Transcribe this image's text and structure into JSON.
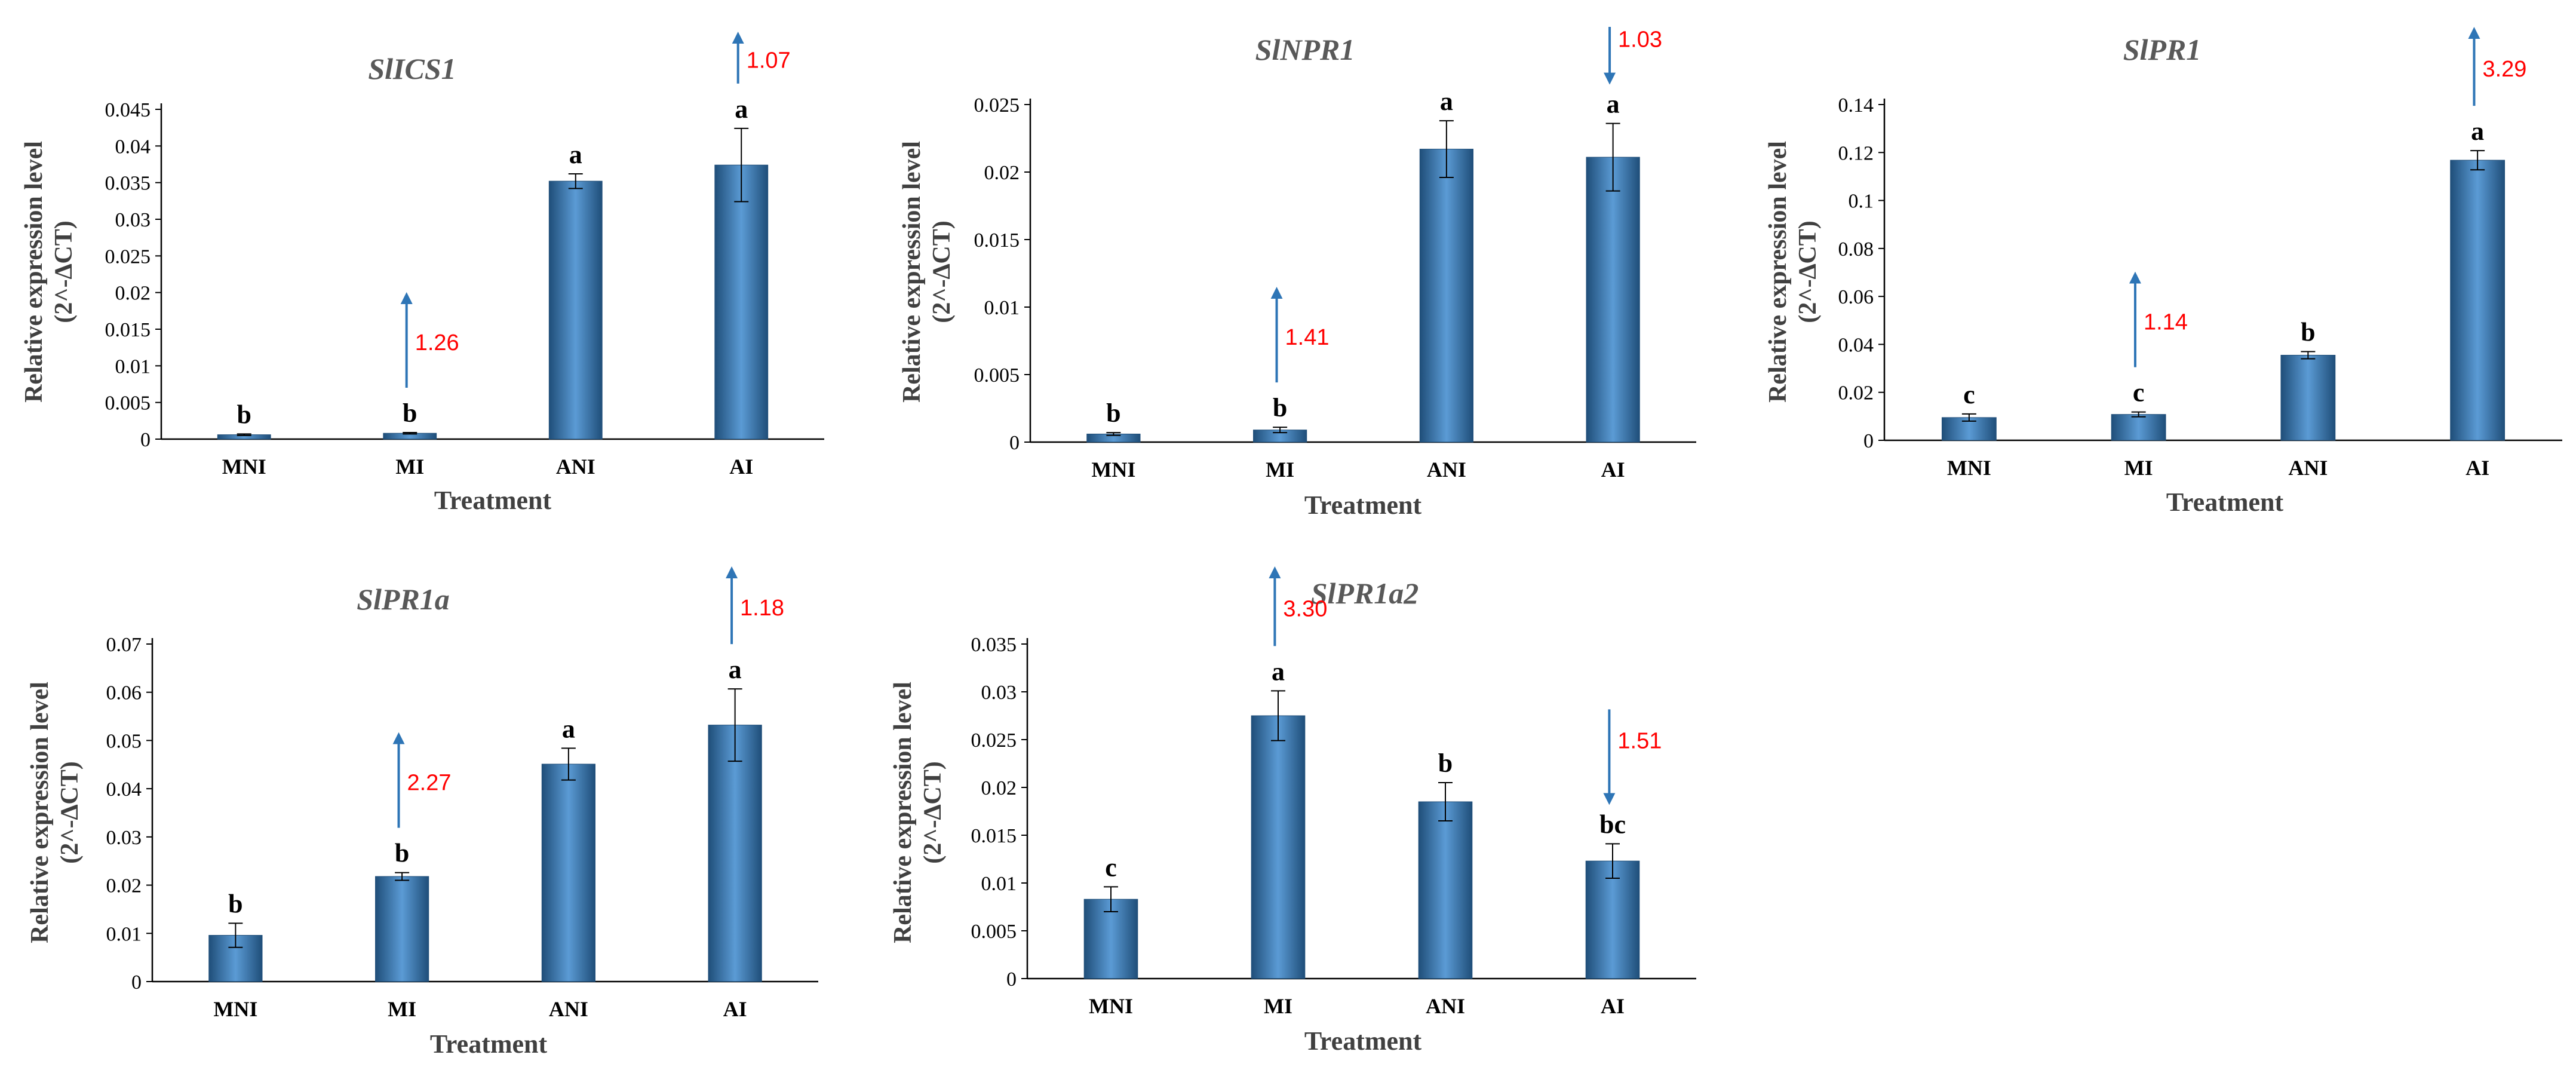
{
  "colors": {
    "bar": "#2e75b6",
    "bar_light": "#5b9bd5",
    "bar_dark": "#1f4e79",
    "arrow": "#2e75b6",
    "fold_text": "#ff0000",
    "axis": "#000000"
  },
  "chart_data": [
    {
      "type": "bar",
      "title": "SlICS1",
      "xlabel": "Treatment",
      "ylabel_line1": "Relative expression level",
      "ylabel_line2": "(2^-∆CT)",
      "categories": [
        "MNI",
        "MI",
        "ANI",
        "AI"
      ],
      "values": [
        0.0006,
        0.0008,
        0.0352,
        0.0374
      ],
      "errors": [
        0.0001,
        0.0001,
        0.001,
        0.005
      ],
      "significance": [
        "b",
        "b",
        "a",
        "a"
      ],
      "ylim": [
        0,
        0.045
      ],
      "yticks": [
        "0",
        "0.005",
        "0.01",
        "0.015",
        "0.02",
        "0.025",
        "0.03",
        "0.035",
        "0.04",
        "0.045"
      ],
      "annotations": [
        {
          "category": "MI",
          "direction": "up",
          "label": "1.26"
        },
        {
          "category": "AI",
          "direction": "up",
          "label": "1.07"
        }
      ]
    },
    {
      "type": "bar",
      "title": "SlNPR1",
      "xlabel": "Treatment",
      "ylabel_line1": "Relative expression level",
      "ylabel_line2": "(2^-∆CT)",
      "categories": [
        "MNI",
        "MI",
        "ANI",
        "AI"
      ],
      "values": [
        0.0006,
        0.0009,
        0.0217,
        0.0211
      ],
      "errors": [
        0.0001,
        0.0002,
        0.0021,
        0.0025
      ],
      "significance": [
        "b",
        "b",
        "a",
        "a"
      ],
      "ylim": [
        0,
        0.025
      ],
      "yticks": [
        "0",
        "0.005",
        "0.01",
        "0.015",
        "0.02",
        "0.025"
      ],
      "annotations": [
        {
          "category": "MI",
          "direction": "up",
          "label": "1.41"
        },
        {
          "category": "AI",
          "direction": "down",
          "label": "1.03"
        }
      ]
    },
    {
      "type": "bar",
      "title": "SlPR1",
      "xlabel": "Treatment",
      "ylabel_line1": "Relative expression level",
      "ylabel_line2": "(2^-∆CT)",
      "categories": [
        "MNI",
        "MI",
        "ANI",
        "AI"
      ],
      "values": [
        0.0095,
        0.0108,
        0.0355,
        0.1168
      ],
      "errors": [
        0.0015,
        0.001,
        0.0015,
        0.004
      ],
      "significance": [
        "c",
        "c",
        "b",
        "a"
      ],
      "ylim": [
        0,
        0.14
      ],
      "yticks": [
        "0",
        "0.02",
        "0.04",
        "0.06",
        "0.08",
        "0.1",
        "0.12",
        "0.14"
      ],
      "annotations": [
        {
          "category": "MI",
          "direction": "up",
          "label": "1.14"
        },
        {
          "category": "AI",
          "direction": "up",
          "label": "3.29"
        }
      ]
    },
    {
      "type": "bar",
      "title": "SlPR1a",
      "xlabel": "Treatment",
      "ylabel_line1": "Relative expression level",
      "ylabel_line2": "(2^-∆CT)",
      "categories": [
        "MNI",
        "MI",
        "ANI",
        "AI"
      ],
      "values": [
        0.0096,
        0.0218,
        0.0451,
        0.0532
      ],
      "errors": [
        0.0025,
        0.0008,
        0.0033,
        0.0075
      ],
      "significance": [
        "b",
        "b",
        "a",
        "a"
      ],
      "ylim": [
        0,
        0.07
      ],
      "yticks": [
        "0",
        "0.01",
        "0.02",
        "0.03",
        "0.04",
        "0.05",
        "0.06",
        "0.07"
      ],
      "annotations": [
        {
          "category": "MI",
          "direction": "up",
          "label": "2.27"
        },
        {
          "category": "AI",
          "direction": "up",
          "label": "1.18"
        }
      ]
    },
    {
      "type": "bar",
      "title": "SlPR1a2",
      "xlabel": "Treatment",
      "ylabel_line1": "Relative expression level",
      "ylabel_line2": "(2^-∆CT)",
      "categories": [
        "MNI",
        "MI",
        "ANI",
        "AI"
      ],
      "values": [
        0.0083,
        0.0275,
        0.0185,
        0.0123
      ],
      "errors": [
        0.0013,
        0.0026,
        0.002,
        0.0018
      ],
      "significance": [
        "c",
        "a",
        "b",
        "bc"
      ],
      "ylim": [
        0,
        0.035
      ],
      "yticks": [
        "0",
        "0.005",
        "0.01",
        "0.015",
        "0.02",
        "0.025",
        "0.03",
        "0.035"
      ],
      "annotations": [
        {
          "category": "MI",
          "direction": "up",
          "label": "3.30"
        },
        {
          "category": "AI",
          "direction": "down",
          "label": "1.51"
        }
      ]
    }
  ]
}
